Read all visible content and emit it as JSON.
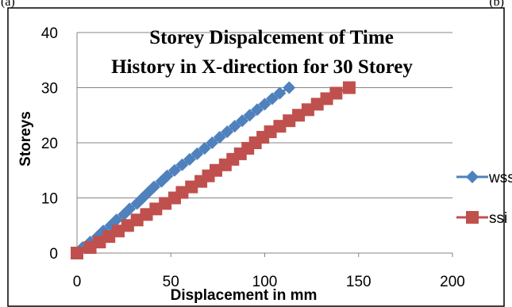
{
  "corner_left": "(a)",
  "corner_right": "(b)",
  "colors": {
    "wssi": "#4f81bd",
    "ssi": "#c0504d",
    "grid": "#868686",
    "border": "#000000"
  },
  "chart_data": {
    "type": "line",
    "title_lines": [
      "Storey Dispalcement of Time",
      "History in X-direction for 30 Storey"
    ],
    "xlabel": "Displacement in mm",
    "ylabel": "Storeys",
    "xlim": [
      0,
      200
    ],
    "ylim": [
      0,
      40
    ],
    "xticks": [
      0,
      50,
      100,
      150,
      200
    ],
    "yticks": [
      0,
      10,
      20,
      30,
      40
    ],
    "grid": "horizontal",
    "legend": "right",
    "series": [
      {
        "name": "wssi",
        "marker": "diamond",
        "color": "#4f81bd",
        "y": [
          0,
          1,
          2,
          3,
          4,
          5,
          6,
          7,
          8,
          9,
          10,
          11,
          12,
          13,
          14,
          15,
          16,
          17,
          18,
          19,
          20,
          21,
          22,
          23,
          24,
          25,
          26,
          27,
          28,
          29,
          30
        ],
        "x": [
          0,
          3,
          7,
          11,
          14,
          18,
          21,
          25,
          28,
          32,
          35,
          38,
          41,
          45,
          48,
          52,
          56,
          60,
          64,
          68,
          72,
          76,
          80,
          84,
          88,
          92,
          96,
          100,
          104,
          108,
          113
        ]
      },
      {
        "name": "ssi",
        "marker": "square",
        "color": "#c0504d",
        "y": [
          0,
          1,
          2,
          3,
          4,
          5,
          6,
          7,
          8,
          9,
          10,
          11,
          12,
          13,
          14,
          15,
          16,
          17,
          18,
          19,
          20,
          21,
          22,
          23,
          24,
          25,
          26,
          27,
          28,
          29,
          30
        ],
        "x": [
          0,
          7,
          12,
          17,
          22,
          27,
          32,
          37,
          42,
          47,
          52,
          56,
          61,
          66,
          70,
          74,
          79,
          83,
          87,
          91,
          95,
          99,
          103,
          108,
          113,
          118,
          123,
          128,
          133,
          138,
          145
        ]
      }
    ]
  }
}
